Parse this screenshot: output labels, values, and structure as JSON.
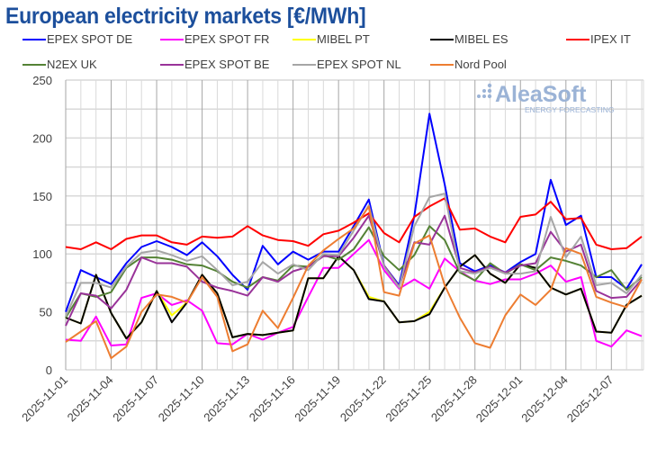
{
  "chart_data": {
    "type": "line",
    "title": "European electricity markets [€/MWh]",
    "xlabel": "",
    "ylabel": "",
    "ylim": [
      0,
      250
    ],
    "yticks": [
      0,
      50,
      100,
      150,
      200,
      250
    ],
    "grid": true,
    "legend_position": "top",
    "label_every": 3,
    "categories": [
      "2025-11-01",
      "2025-11-02",
      "2025-11-03",
      "2025-11-04",
      "2025-11-05",
      "2025-11-06",
      "2025-11-07",
      "2025-11-08",
      "2025-11-09",
      "2025-11-10",
      "2025-11-11",
      "2025-11-12",
      "2025-11-13",
      "2025-11-14",
      "2025-11-15",
      "2025-11-16",
      "2025-11-17",
      "2025-11-18",
      "2025-11-19",
      "2025-11-20",
      "2025-11-21",
      "2025-11-22",
      "2025-11-23",
      "2025-11-24",
      "2025-11-25",
      "2025-11-26",
      "2025-11-27",
      "2025-11-28",
      "2025-11-29",
      "2025-11-30",
      "2025-12-01",
      "2025-12-02",
      "2025-12-03",
      "2025-12-04",
      "2025-12-05",
      "2025-12-06",
      "2025-12-07",
      "2025-12-08",
      "2025-12-09"
    ],
    "series": [
      {
        "name": "EPEX SPOT DE",
        "color": "#0000ff",
        "values": [
          50,
          86,
          80,
          74,
          92,
          106,
          111,
          106,
          99,
          110,
          98,
          82,
          69,
          107,
          91,
          102,
          95,
          102,
          102,
          124,
          147,
          90,
          73,
          133,
          221,
          160,
          92,
          85,
          90,
          84,
          93,
          100,
          164,
          125,
          133,
          80,
          80,
          70,
          91
        ]
      },
      {
        "name": "EPEX SPOT FR",
        "color": "#ff00ff",
        "values": [
          26,
          25,
          46,
          21,
          22,
          62,
          66,
          56,
          60,
          51,
          23,
          22,
          31,
          26,
          32,
          37,
          63,
          88,
          88,
          100,
          112,
          86,
          70,
          78,
          70,
          96,
          85,
          77,
          74,
          78,
          78,
          83,
          90,
          76,
          80,
          25,
          20,
          34,
          29
        ]
      },
      {
        "name": "MIBEL PT",
        "color": "#ffff00",
        "values": [
          45,
          40,
          82,
          49,
          27,
          41,
          68,
          47,
          58,
          82,
          66,
          28,
          31,
          30,
          32,
          34,
          79,
          79,
          98,
          86,
          63,
          59,
          41,
          42,
          50,
          71,
          89,
          99,
          83,
          75,
          91,
          88,
          71,
          65,
          70,
          33,
          32,
          56,
          64
        ]
      },
      {
        "name": "MIBEL ES",
        "color": "#000000",
        "values": [
          45,
          40,
          82,
          49,
          27,
          41,
          68,
          41,
          58,
          82,
          66,
          28,
          31,
          30,
          32,
          34,
          79,
          79,
          98,
          86,
          61,
          59,
          41,
          42,
          48,
          71,
          89,
          99,
          83,
          75,
          91,
          88,
          71,
          65,
          70,
          33,
          32,
          56,
          64
        ]
      },
      {
        "name": "IPEX IT",
        "color": "#ff0000",
        "values": [
          106,
          104,
          110,
          104,
          113,
          116,
          116,
          110,
          108,
          115,
          114,
          115,
          124,
          116,
          112,
          111,
          107,
          117,
          120,
          127,
          135,
          118,
          110,
          132,
          141,
          148,
          121,
          122,
          115,
          110,
          132,
          134,
          145,
          130,
          131,
          108,
          104,
          105,
          115
        ]
      },
      {
        "name": "N2EX UK",
        "color": "#548235",
        "values": [
          45,
          66,
          63,
          67,
          88,
          97,
          97,
          95,
          91,
          90,
          85,
          76,
          71,
          80,
          77,
          90,
          89,
          99,
          95,
          104,
          123,
          98,
          86,
          99,
          124,
          112,
          84,
          77,
          92,
          83,
          91,
          86,
          97,
          94,
          90,
          80,
          86,
          69,
          80
        ]
      },
      {
        "name": "EPEX SPOT BE",
        "color": "#993399",
        "values": [
          38,
          66,
          64,
          53,
          69,
          97,
          92,
          92,
          89,
          76,
          71,
          68,
          64,
          80,
          76,
          85,
          89,
          98,
          98,
          114,
          133,
          90,
          72,
          110,
          108,
          133,
          88,
          84,
          89,
          84,
          90,
          92,
          119,
          102,
          108,
          68,
          62,
          63,
          78
        ]
      },
      {
        "name": "EPEX SPOT NL",
        "color": "#a6a6a6",
        "values": [
          46,
          75,
          75,
          71,
          89,
          101,
          103,
          99,
          94,
          98,
          86,
          73,
          76,
          93,
          83,
          91,
          86,
          100,
          99,
          120,
          142,
          89,
          71,
          124,
          149,
          152,
          85,
          83,
          88,
          83,
          83,
          85,
          132,
          97,
          115,
          73,
          75,
          66,
          82
        ]
      },
      {
        "name": "Nord Pool",
        "color": "#ed7d31",
        "values": [
          24,
          33,
          42,
          10,
          20,
          50,
          65,
          63,
          58,
          80,
          63,
          16,
          22,
          51,
          36,
          62,
          90,
          103,
          113,
          122,
          141,
          67,
          64,
          109,
          116,
          73,
          45,
          23,
          19,
          47,
          65,
          56,
          69,
          105,
          100,
          63,
          58,
          54,
          78
        ]
      }
    ]
  },
  "logo": {
    "name": "AleaSoft",
    "tagline": "ENERGY FORECASTING"
  },
  "colors": {
    "title": "#1c4f9c",
    "logo": "#9bb3d6"
  }
}
